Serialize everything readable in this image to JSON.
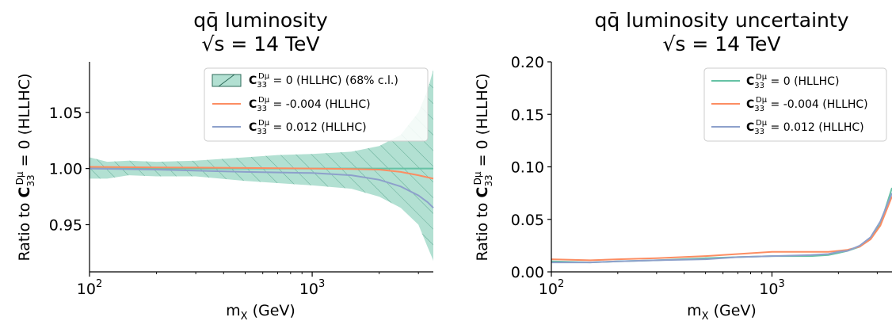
{
  "chart_data": [
    {
      "type": "line",
      "title_line1": "qq̄ luminosity",
      "title_line2": "√s = 14 TeV",
      "xlabel": "mX (GeV)",
      "ylabel": "Ratio to C33Dμ = 0 (HLLHC)",
      "xscale": "log",
      "xlim": [
        100,
        3500
      ],
      "ylim": [
        0.908,
        1.095
      ],
      "xticks": [
        {
          "v": 100,
          "label": "10",
          "exp": "2"
        },
        {
          "v": 1000,
          "label": "10",
          "exp": "3"
        }
      ],
      "yticks": [
        {
          "v": 0.95,
          "label": "0.95"
        },
        {
          "v": 1.0,
          "label": "1.00"
        },
        {
          "v": 1.05,
          "label": "1.05"
        }
      ],
      "legend_position": "top-right",
      "band": {
        "name": "C33Dμ = 0 (HLLHC) (68% c.l.)",
        "color": "#66c2a5",
        "x": [
          100,
          120,
          150,
          200,
          300,
          500,
          700,
          1000,
          1500,
          2000,
          2500,
          3000,
          3300,
          3500
        ],
        "upper": [
          1.01,
          1.006,
          1.007,
          1.006,
          1.007,
          1.01,
          1.012,
          1.013,
          1.015,
          1.02,
          1.03,
          1.05,
          1.07,
          1.088
        ],
        "lower": [
          0.991,
          0.991,
          0.994,
          0.993,
          0.993,
          0.989,
          0.987,
          0.985,
          0.982,
          0.975,
          0.965,
          0.95,
          0.93,
          0.918
        ]
      },
      "series": [
        {
          "name": "C33Dμ = 0 (HLLHC)",
          "color": "#66c2a5",
          "x": [
            100,
            3500
          ],
          "values": [
            1.0,
            1.0
          ],
          "in_legend": false
        },
        {
          "name": "C33Dμ = -0.004 (HLLHC)",
          "color": "#fc8d62",
          "x": [
            100,
            200,
            500,
            1000,
            1500,
            2000,
            2500,
            3000,
            3500
          ],
          "values": [
            1.0015,
            1.001,
            1.0005,
            1.0,
            0.9995,
            0.999,
            0.997,
            0.994,
            0.991
          ]
        },
        {
          "name": "C33Dμ = 0.012 (HLLHC)",
          "color": "#8da0cb",
          "x": [
            100,
            200,
            500,
            1000,
            1500,
            2000,
            2500,
            3000,
            3300,
            3500
          ],
          "values": [
            1.0,
            0.999,
            0.997,
            0.996,
            0.994,
            0.99,
            0.984,
            0.976,
            0.97,
            0.965
          ]
        }
      ]
    },
    {
      "type": "line",
      "title_line1": "qq̄ luminosity uncertainty",
      "title_line2": "√s = 14 TeV",
      "xlabel": "mX (GeV)",
      "ylabel": "Ratio to C33Dμ = 0 (HLLHC)",
      "xscale": "log",
      "xlim": [
        100,
        3500
      ],
      "ylim": [
        0.0,
        0.2
      ],
      "xticks": [
        {
          "v": 100,
          "label": "10",
          "exp": "2"
        },
        {
          "v": 1000,
          "label": "10",
          "exp": "3"
        }
      ],
      "yticks": [
        {
          "v": 0.0,
          "label": "0.00"
        },
        {
          "v": 0.05,
          "label": "0.05"
        },
        {
          "v": 0.1,
          "label": "0.10"
        },
        {
          "v": 0.15,
          "label": "0.15"
        },
        {
          "v": 0.2,
          "label": "0.20"
        }
      ],
      "legend_position": "top-right",
      "series": [
        {
          "name": "C33Dμ = 0 (HLLHC)",
          "color": "#66c2a5",
          "x": [
            100,
            150,
            200,
            300,
            500,
            700,
            1000,
            1500,
            1800,
            2000,
            2200,
            2500,
            2800,
            3100,
            3500
          ],
          "values": [
            0.01,
            0.009,
            0.01,
            0.011,
            0.013,
            0.014,
            0.015,
            0.015,
            0.016,
            0.018,
            0.02,
            0.024,
            0.032,
            0.045,
            0.08
          ]
        },
        {
          "name": "C33Dμ = -0.004 (HLLHC)",
          "color": "#fc8d62",
          "x": [
            100,
            150,
            200,
            300,
            500,
            700,
            1000,
            1500,
            1800,
            2000,
            2200,
            2500,
            2800,
            3100,
            3500
          ],
          "values": [
            0.012,
            0.011,
            0.012,
            0.013,
            0.015,
            0.017,
            0.019,
            0.019,
            0.019,
            0.02,
            0.021,
            0.024,
            0.031,
            0.044,
            0.072
          ]
        },
        {
          "name": "C33Dμ = 0.012 (HLLHC)",
          "color": "#8da0cb",
          "x": [
            100,
            150,
            200,
            300,
            500,
            700,
            1000,
            1500,
            1800,
            2000,
            2200,
            2500,
            2800,
            3100,
            3500
          ],
          "values": [
            0.009,
            0.009,
            0.01,
            0.011,
            0.012,
            0.014,
            0.015,
            0.016,
            0.017,
            0.019,
            0.02,
            0.025,
            0.033,
            0.048,
            0.075
          ]
        }
      ]
    }
  ]
}
